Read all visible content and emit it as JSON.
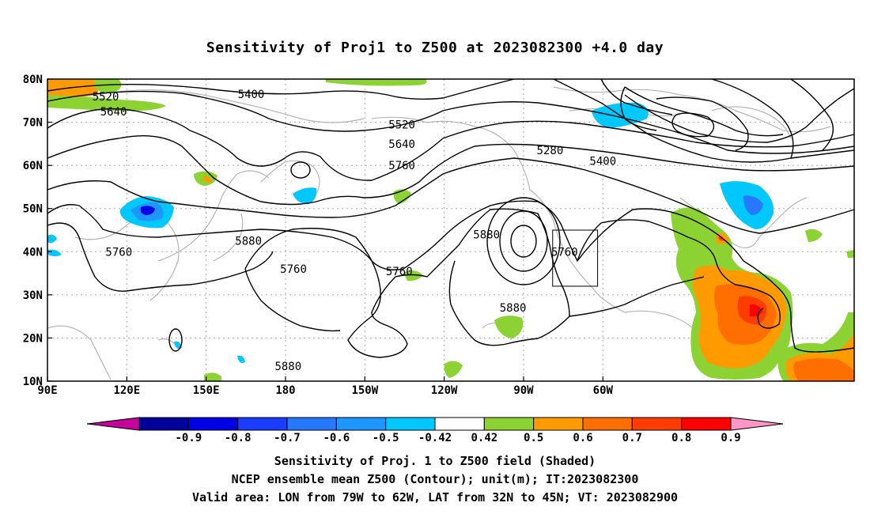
{
  "title": "Sensitivity of Proj1 to Z500 at 2023082300 +4.0 day",
  "map": {
    "lat_labels": [
      "80N",
      "70N",
      "60N",
      "50N",
      "40N",
      "30N",
      "20N",
      "10N"
    ],
    "lon_labels": [
      "90E",
      "120E",
      "150E",
      "180",
      "150W",
      "120W",
      "90W",
      "60W"
    ],
    "contour_labels": [
      {
        "text": "5520",
        "lon": 112,
        "lat": 76
      },
      {
        "text": "5640",
        "lon": 115,
        "lat": 72.5
      },
      {
        "text": "5400",
        "lon": 167,
        "lat": 76.5
      },
      {
        "text": "5520",
        "lon": -136,
        "lat": 69.5
      },
      {
        "text": "5640",
        "lon": -136,
        "lat": 65
      },
      {
        "text": "5760",
        "lon": -136,
        "lat": 60
      },
      {
        "text": "5280",
        "lon": -80,
        "lat": 63.5
      },
      {
        "text": "5400",
        "lon": -60,
        "lat": 61
      },
      {
        "text": "5880",
        "lon": 166,
        "lat": 42.5
      },
      {
        "text": "5760",
        "lon": 117,
        "lat": 40
      },
      {
        "text": "5760",
        "lon": -177,
        "lat": 36
      },
      {
        "text": "5760",
        "lon": -137,
        "lat": 35.5
      },
      {
        "text": "5880",
        "lon": -104,
        "lat": 44
      },
      {
        "text": "5760",
        "lon": -74.5,
        "lat": 40
      },
      {
        "text": "5880",
        "lon": -94,
        "lat": 27
      },
      {
        "text": "5880",
        "lon": -179,
        "lat": 13.5
      }
    ],
    "valid_box": {
      "lon_min": -79,
      "lon_max": -62,
      "lat_min": 32,
      "lat_max": 45
    }
  },
  "colorbar": {
    "colors": [
      "#c8009b",
      "#00009b",
      "#0000e6",
      "#1c3cff",
      "#2878ff",
      "#1e96ff",
      "#00c8ff",
      "#ffffff",
      "#8cd232",
      "#ff9b00",
      "#ff6e00",
      "#ff3c00",
      "#ff0000",
      "#ff96c8"
    ],
    "labels": [
      "-0.9",
      "-0.8",
      "-0.7",
      "-0.6",
      "-0.5",
      "-0.42",
      "0.42",
      "0.5",
      "0.6",
      "0.7",
      "0.8",
      "0.9"
    ]
  },
  "footer": {
    "line1": "Sensitivity of Proj. 1 to Z500 field (Shaded)",
    "line2": "NCEP ensemble mean Z500 (Contour); unit(m); IT:2023082300",
    "line3": "Valid area: LON from 79W to 62W, LAT from 32N to 45N; VT: 2023082900"
  }
}
